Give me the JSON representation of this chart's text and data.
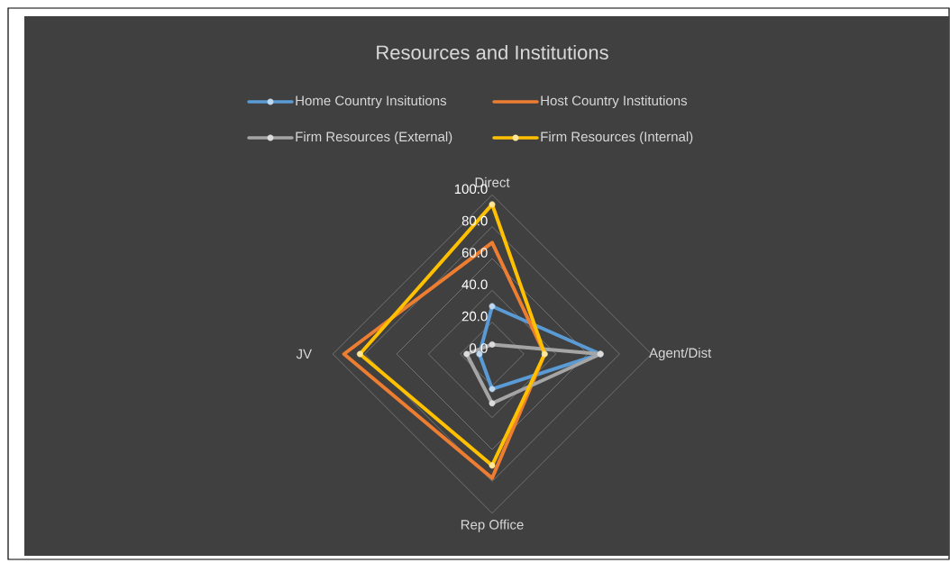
{
  "chart_data": {
    "type": "radar",
    "title": "Resources and Institutions",
    "categories": [
      "Direct",
      "Agent/Dist",
      "Rep Office",
      "JV"
    ],
    "series": [
      {
        "name": "Home Country Insitutions",
        "color": "#5b9bd5",
        "values": [
          30,
          68,
          22,
          8
        ]
      },
      {
        "name": "Host Country Institutions",
        "color": "#ed7d31",
        "values": [
          70,
          33,
          78,
          93
        ],
        "marker": "none"
      },
      {
        "name": "Firm Resources (External)",
        "color": "#a5a5a5",
        "values": [
          6,
          68,
          31,
          16
        ]
      },
      {
        "name": "Firm Resources (Internal)",
        "color": "#ffc000",
        "values": [
          94,
          33,
          70,
          83
        ]
      }
    ],
    "ylim": [
      0,
      100
    ],
    "yticks": [
      {
        "value": 0,
        "label": "0.0"
      },
      {
        "value": 20,
        "label": "20.0"
      },
      {
        "value": 40,
        "label": "40.0"
      },
      {
        "value": 60,
        "label": "60.0"
      },
      {
        "value": 80,
        "label": "80.0"
      },
      {
        "value": 100,
        "label": "100.0"
      }
    ],
    "grid": true,
    "legend": "top",
    "marker": "circle"
  }
}
